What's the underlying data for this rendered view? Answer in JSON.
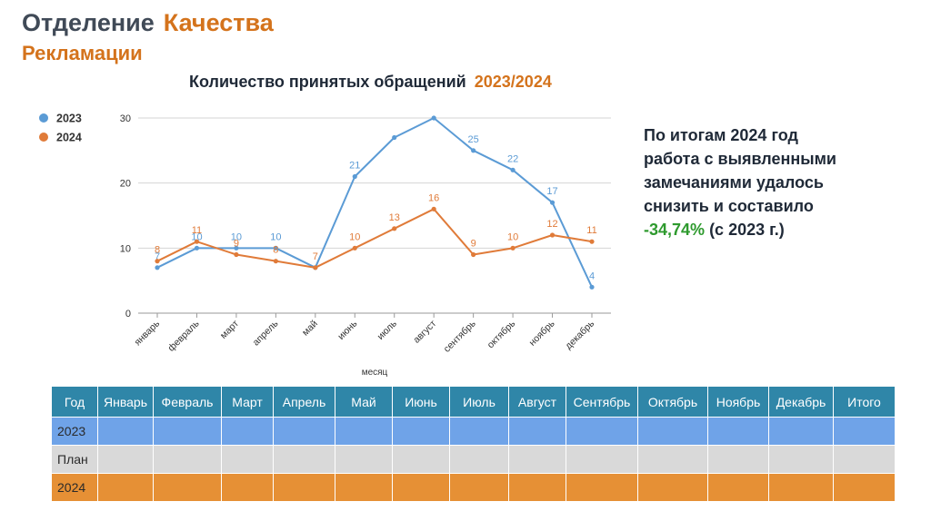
{
  "header": {
    "title_part1": "Отделение",
    "title_part2": "Качества",
    "subtitle": "Рекламации"
  },
  "chart_title": {
    "text": "Количество принятых обращений",
    "years": "2023/2024"
  },
  "side_note": {
    "line1": "По итогам 2024 год",
    "line2": "работа с выявленными",
    "line3": "замечаниями удалось",
    "line4": "снизить и составило",
    "percent": "-34,74%",
    "suffix": "(с 2023 г.)"
  },
  "colors": {
    "series_2023": "#5b9bd5",
    "series_2024": "#e07b39",
    "accent_orange": "#d4731c",
    "accent_green": "#2e9a2e",
    "table_header": "#2f86a8"
  },
  "chart_data": {
    "type": "line",
    "x": [
      "январь",
      "февраль",
      "март",
      "апрель",
      "май",
      "июнь",
      "июль",
      "август",
      "сентябрь",
      "октябрь",
      "ноябрь",
      "декабрь"
    ],
    "series": [
      {
        "name": "2023",
        "values": [
          7,
          10,
          10,
          10,
          7,
          21,
          27,
          30,
          25,
          22,
          17,
          4
        ],
        "labels": [
          "7",
          "10",
          "10",
          "10",
          "",
          "21",
          "",
          "",
          "25",
          "22",
          "17",
          "4"
        ]
      },
      {
        "name": "2024",
        "values": [
          8,
          11,
          9,
          8,
          7,
          10,
          13,
          16,
          9,
          10,
          12,
          11
        ],
        "labels": [
          "8",
          "11",
          "9",
          "8",
          "7",
          "10",
          "13",
          "16",
          "9",
          "10",
          "12",
          "11"
        ]
      }
    ],
    "xlabel": "месяц",
    "ylabel": "",
    "ylim": [
      0,
      30
    ],
    "yticks": [
      0,
      10,
      20,
      30
    ],
    "grid": true,
    "legend": "top-left"
  },
  "table": {
    "headers": [
      "Год",
      "Январь",
      "Февраль",
      "Март",
      "Апрель",
      "Май",
      "Июнь",
      "Июль",
      "Август",
      "Сентябрь",
      "Октябрь",
      "Ноябрь",
      "Декабрь",
      "Итого"
    ],
    "rows": [
      {
        "label": "2023"
      },
      {
        "label": "План"
      },
      {
        "label": "2024"
      }
    ]
  }
}
